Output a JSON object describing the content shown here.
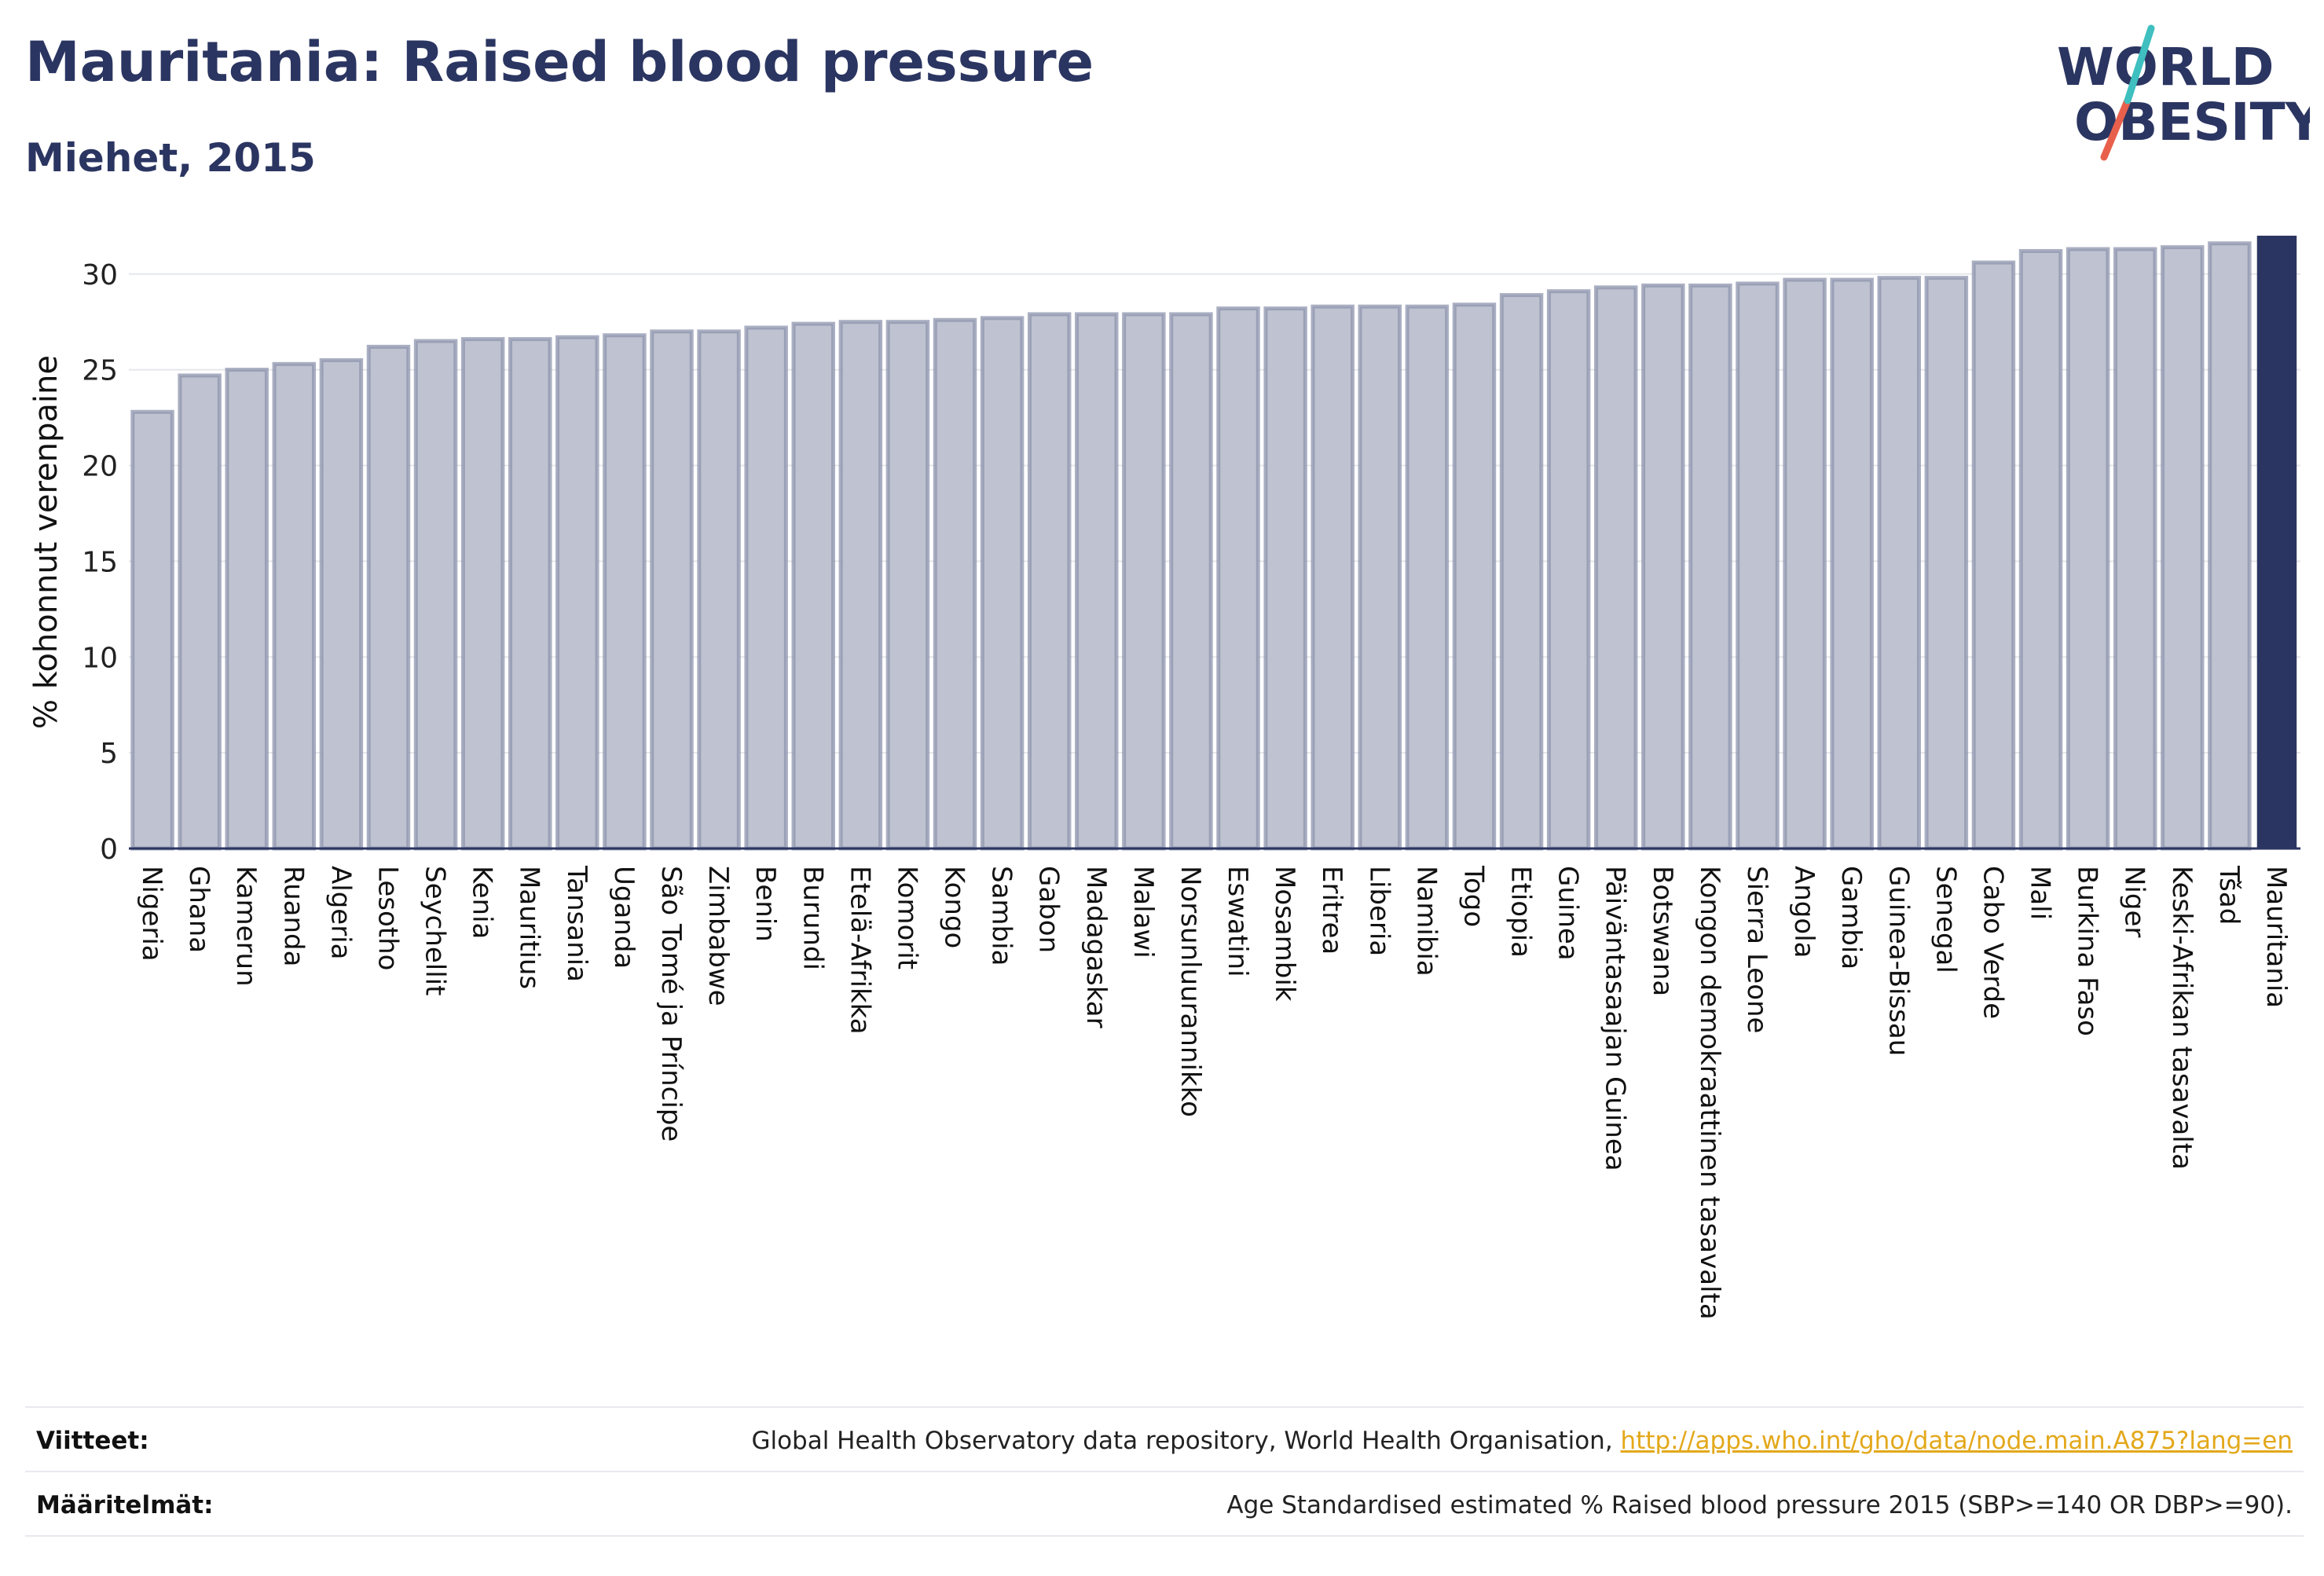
{
  "header": {
    "title": "Mauritania: Raised blood pressure",
    "subtitle": "Miehet, 2015"
  },
  "logo": {
    "line1": "WORLD",
    "line2": "OBESITY",
    "accent_teal": "#3fbfbf",
    "accent_red": "#e8604c"
  },
  "colors": {
    "bar_fill": "#bfc2d0",
    "bar_stroke": "#8e94ad",
    "highlight": "#2b3561",
    "text": "#2b3561",
    "link": "#e3a81b"
  },
  "chart_data": {
    "type": "bar",
    "ylabel": "% kohonnut verenpaine",
    "ylim": [
      0,
      32
    ],
    "yticks": [
      0,
      5,
      10,
      15,
      20,
      25,
      30
    ],
    "grid": true,
    "highlight": "Mauritania",
    "categories": [
      "Nigeria",
      "Ghana",
      "Kamerun",
      "Ruanda",
      "Algeria",
      "Lesotho",
      "Seychellit",
      "Kenia",
      "Mauritius",
      "Tansania",
      "Uganda",
      "São Tomé ja Príncipe",
      "Zimbabwe",
      "Benin",
      "Burundi",
      "Etelä-Afrikka",
      "Komorit",
      "Kongo",
      "Sambia",
      "Gabon",
      "Madagaskar",
      "Malawi",
      "Norsunluurannikko",
      "Eswatini",
      "Mosambik",
      "Eritrea",
      "Liberia",
      "Namibia",
      "Togo",
      "Etiopia",
      "Guinea",
      "Päiväntasaajan Guinea",
      "Botswana",
      "Kongon demokraattinen tasavalta",
      "Sierra Leone",
      "Angola",
      "Gambia",
      "Guinea-Bissau",
      "Senegal",
      "Cabo Verde",
      "Mali",
      "Burkina Faso",
      "Niger",
      "Keski-Afrikan tasavalta",
      "Tšad",
      "Mauritania"
    ],
    "values": [
      22.8,
      24.7,
      25.0,
      25.3,
      25.5,
      26.2,
      26.5,
      26.6,
      26.6,
      26.7,
      26.8,
      27.0,
      27.0,
      27.2,
      27.4,
      27.5,
      27.5,
      27.6,
      27.7,
      27.9,
      27.9,
      27.9,
      27.9,
      28.2,
      28.2,
      28.3,
      28.3,
      28.3,
      28.4,
      28.9,
      29.1,
      29.3,
      29.4,
      29.4,
      29.5,
      29.7,
      29.7,
      29.8,
      29.8,
      30.6,
      31.2,
      31.3,
      31.3,
      31.4,
      31.6,
      32.0
    ]
  },
  "footer": {
    "references_label": "Viitteet:",
    "references_text": "Global Health Observatory data repository, World Health Organisation, ",
    "references_link": "http://apps.who.int/gho/data/node.main.A875?lang=en",
    "definitions_label": "Määritelmät:",
    "definitions_text": "Age Standardised estimated % Raised blood pressure 2015 (SBP>=140 OR DBP>=90)."
  }
}
